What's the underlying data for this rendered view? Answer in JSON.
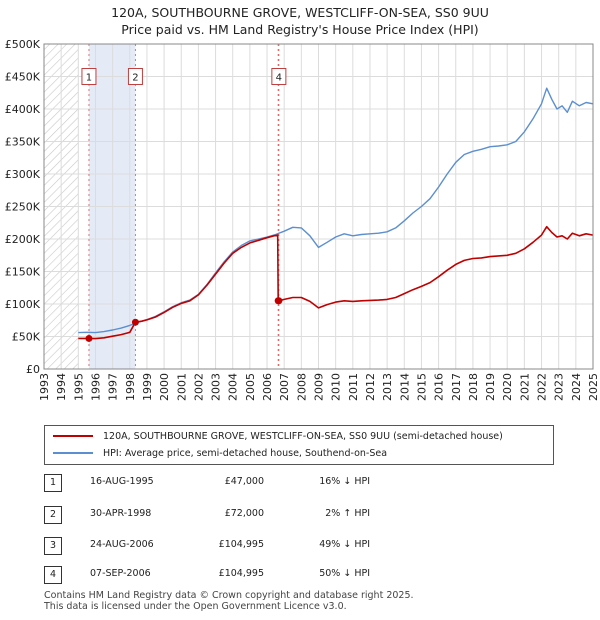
{
  "title_line1": "120A, SOUTHBOURNE GROVE, WESTCLIFF-ON-SEA, SS0 9UU",
  "title_line2": "Price paid vs. HM Land Registry's House Price Index (HPI)",
  "chart_data": {
    "type": "line",
    "xlim": [
      1993,
      2025
    ],
    "ylim": [
      0,
      500000
    ],
    "x_ticks": [
      "1993",
      "1994",
      "1995",
      "1996",
      "1997",
      "1998",
      "1999",
      "2000",
      "2001",
      "2002",
      "2003",
      "2004",
      "2005",
      "2006",
      "2007",
      "2008",
      "2009",
      "2010",
      "2011",
      "2012",
      "2013",
      "2014",
      "2015",
      "2016",
      "2017",
      "2018",
      "2019",
      "2020",
      "2021",
      "2022",
      "2023",
      "2024",
      "2025"
    ],
    "y_ticks": [
      {
        "value": 0,
        "label": "£0"
      },
      {
        "value": 50000,
        "label": "£50K"
      },
      {
        "value": 100000,
        "label": "£100K"
      },
      {
        "value": 150000,
        "label": "£150K"
      },
      {
        "value": 200000,
        "label": "£200K"
      },
      {
        "value": 250000,
        "label": "£250K"
      },
      {
        "value": 300000,
        "label": "£300K"
      },
      {
        "value": 350000,
        "label": "£350K"
      },
      {
        "value": 400000,
        "label": "£400K"
      },
      {
        "value": 450000,
        "label": "£450K"
      },
      {
        "value": 500000,
        "label": "£500K"
      }
    ],
    "hatch_until": 1995,
    "shaded_span": [
      1995.62,
      1998.33
    ],
    "series": [
      {
        "name": "HPI: Average price, semi-detached house, Southend-on-Sea",
        "color": "#5b8fcf",
        "points": [
          [
            1995.0,
            56000
          ],
          [
            1995.5,
            56500
          ],
          [
            1996.0,
            56000
          ],
          [
            1996.5,
            57500
          ],
          [
            1997.0,
            60000
          ],
          [
            1997.5,
            63000
          ],
          [
            1998.0,
            67000
          ],
          [
            1998.5,
            72000
          ],
          [
            1999.0,
            76000
          ],
          [
            1999.5,
            81000
          ],
          [
            2000.0,
            88000
          ],
          [
            2000.5,
            96000
          ],
          [
            2001.0,
            102000
          ],
          [
            2001.5,
            106000
          ],
          [
            2002.0,
            115000
          ],
          [
            2002.5,
            130000
          ],
          [
            2003.0,
            148000
          ],
          [
            2003.5,
            165000
          ],
          [
            2004.0,
            180000
          ],
          [
            2004.5,
            190000
          ],
          [
            2005.0,
            197000
          ],
          [
            2005.5,
            200000
          ],
          [
            2006.0,
            203000
          ],
          [
            2006.5,
            207000
          ],
          [
            2007.0,
            212000
          ],
          [
            2007.5,
            218000
          ],
          [
            2008.0,
            217000
          ],
          [
            2008.5,
            205000
          ],
          [
            2009.0,
            187000
          ],
          [
            2009.5,
            195000
          ],
          [
            2010.0,
            203000
          ],
          [
            2010.5,
            208000
          ],
          [
            2011.0,
            205000
          ],
          [
            2011.5,
            207000
          ],
          [
            2012.0,
            208000
          ],
          [
            2012.5,
            209000
          ],
          [
            2013.0,
            211000
          ],
          [
            2013.5,
            217000
          ],
          [
            2014.0,
            228000
          ],
          [
            2014.5,
            240000
          ],
          [
            2015.0,
            250000
          ],
          [
            2015.5,
            262000
          ],
          [
            2016.0,
            280000
          ],
          [
            2016.5,
            300000
          ],
          [
            2017.0,
            318000
          ],
          [
            2017.5,
            330000
          ],
          [
            2018.0,
            335000
          ],
          [
            2018.5,
            338000
          ],
          [
            2019.0,
            342000
          ],
          [
            2019.5,
            343000
          ],
          [
            2020.0,
            345000
          ],
          [
            2020.5,
            350000
          ],
          [
            2021.0,
            365000
          ],
          [
            2021.5,
            385000
          ],
          [
            2022.0,
            408000
          ],
          [
            2022.3,
            432000
          ],
          [
            2022.6,
            415000
          ],
          [
            2022.9,
            400000
          ],
          [
            2023.2,
            405000
          ],
          [
            2023.5,
            395000
          ],
          [
            2023.8,
            412000
          ],
          [
            2024.2,
            405000
          ],
          [
            2024.6,
            410000
          ],
          [
            2025.0,
            408000
          ]
        ]
      },
      {
        "name": "120A, SOUTHBOURNE GROVE, WESTCLIFF-ON-SEA, SS0 9UU (semi-detached house)",
        "color": "#c00000",
        "points": [
          [
            1995.0,
            47000
          ],
          [
            1995.62,
            47000
          ],
          [
            1996.0,
            46800
          ],
          [
            1996.5,
            48000
          ],
          [
            1997.0,
            50500
          ],
          [
            1997.5,
            53000
          ],
          [
            1998.0,
            56500
          ],
          [
            1998.33,
            72000
          ],
          [
            1998.7,
            73500
          ],
          [
            1999.0,
            75500
          ],
          [
            1999.5,
            80000
          ],
          [
            2000.0,
            87000
          ],
          [
            2000.5,
            95000
          ],
          [
            2001.0,
            101000
          ],
          [
            2001.5,
            105000
          ],
          [
            2002.0,
            114000
          ],
          [
            2002.5,
            129000
          ],
          [
            2003.0,
            146000
          ],
          [
            2003.5,
            163000
          ],
          [
            2004.0,
            178000
          ],
          [
            2004.5,
            187000
          ],
          [
            2005.0,
            194000
          ],
          [
            2005.5,
            198000
          ],
          [
            2006.0,
            202000
          ],
          [
            2006.4,
            205000
          ],
          [
            2006.62,
            206000
          ],
          [
            2006.65,
            104995
          ],
          [
            2006.69,
            104995
          ],
          [
            2007.0,
            107000
          ],
          [
            2007.5,
            110000
          ],
          [
            2008.0,
            110000
          ],
          [
            2008.5,
            104000
          ],
          [
            2009.0,
            94000
          ],
          [
            2009.5,
            99000
          ],
          [
            2010.0,
            103000
          ],
          [
            2010.5,
            105000
          ],
          [
            2011.0,
            104000
          ],
          [
            2011.5,
            105000
          ],
          [
            2012.0,
            105500
          ],
          [
            2012.5,
            106000
          ],
          [
            2013.0,
            107000
          ],
          [
            2013.5,
            110000
          ],
          [
            2014.0,
            116000
          ],
          [
            2014.5,
            122000
          ],
          [
            2015.0,
            127000
          ],
          [
            2015.5,
            133000
          ],
          [
            2016.0,
            142000
          ],
          [
            2016.5,
            152000
          ],
          [
            2017.0,
            161000
          ],
          [
            2017.5,
            167000
          ],
          [
            2018.0,
            170000
          ],
          [
            2018.5,
            171000
          ],
          [
            2019.0,
            173000
          ],
          [
            2019.5,
            174000
          ],
          [
            2020.0,
            175000
          ],
          [
            2020.5,
            178000
          ],
          [
            2021.0,
            185000
          ],
          [
            2021.5,
            195000
          ],
          [
            2022.0,
            206000
          ],
          [
            2022.3,
            219000
          ],
          [
            2022.6,
            210000
          ],
          [
            2022.9,
            203000
          ],
          [
            2023.2,
            205000
          ],
          [
            2023.5,
            200000
          ],
          [
            2023.8,
            209000
          ],
          [
            2024.2,
            205000
          ],
          [
            2024.6,
            208000
          ],
          [
            2025.0,
            206000
          ]
        ]
      }
    ],
    "sales": [
      {
        "num": "1",
        "date": "16-AUG-1995",
        "x": 1995.62,
        "price_value": 47000,
        "label_value": 450000
      },
      {
        "num": "2",
        "date": "30-APR-1998",
        "x": 1998.33,
        "price_value": 72000,
        "label_value": 450000
      },
      {
        "num": "3",
        "date": "24-AUG-2006",
        "x": 2006.65,
        "price_value": 104995,
        "label_value": null
      },
      {
        "num": "4",
        "date": "07-SEP-2006",
        "x": 2006.69,
        "price_value": 104995,
        "label_value": 450000
      }
    ]
  },
  "legend": {
    "property_label": "120A, SOUTHBOURNE GROVE, WESTCLIFF-ON-SEA, SS0 9UU (semi-detached house)",
    "property_color": "#c00000",
    "hpi_label": "HPI: Average price, semi-detached house, Southend-on-Sea",
    "hpi_color": "#5b8fcf"
  },
  "transactions": [
    {
      "num": "1",
      "date": "16-AUG-1995",
      "price": "£47,000",
      "hpi": "16% ↓ HPI"
    },
    {
      "num": "2",
      "date": "30-APR-1998",
      "price": "£72,000",
      "hpi": "2% ↑ HPI"
    },
    {
      "num": "3",
      "date": "24-AUG-2006",
      "price": "£104,995",
      "hpi": "49% ↓ HPI"
    },
    {
      "num": "4",
      "date": "07-SEP-2006",
      "price": "£104,995",
      "hpi": "50% ↓ HPI"
    }
  ],
  "footer": {
    "line1": "Contains HM Land Registry data © Crown copyright and database right 2025.",
    "line2": "This data is licensed under the Open Government Licence v3.0."
  }
}
